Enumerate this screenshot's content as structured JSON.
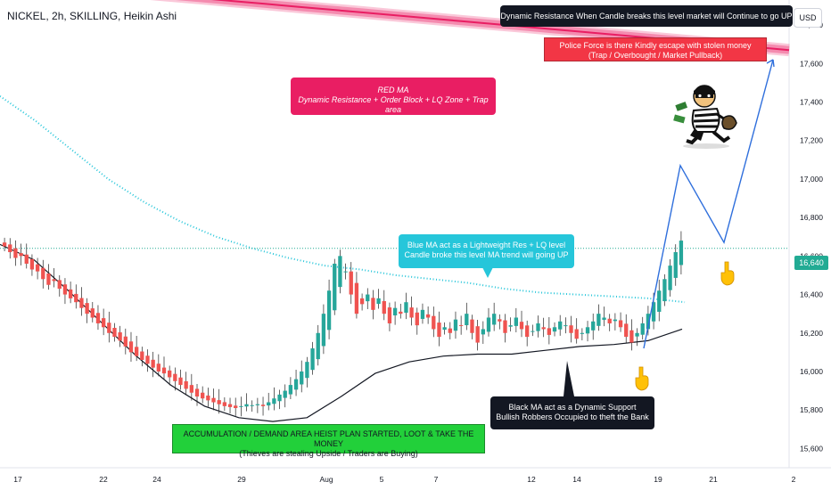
{
  "header": {
    "symbol_line": "NICKEL, 2h, SKILLING, Heikin Ashi",
    "currency": "USD"
  },
  "price_axis": {
    "ticks": [
      "17,800",
      "17,600",
      "17,400",
      "17,200",
      "17,000",
      "16,800",
      "16,600",
      "16,400",
      "16,200",
      "16,000",
      "15,800",
      "15,600"
    ],
    "current_price": "16,640"
  },
  "time_axis": {
    "ticks": [
      "17",
      "22",
      "24",
      "29",
      "Aug",
      "5",
      "7",
      "12",
      "14",
      "19",
      "21",
      "2"
    ]
  },
  "annotations": {
    "dynamic_resistance": "Dynamic Resistance When Candle breaks this level market will Continue to go UP",
    "police_line1": "Police Force is there Kindly escape with stolen money",
    "police_line2": "(Trap / Overbought / Market Pullback)",
    "red_ma_line1": "RED MA",
    "red_ma_line2": "Dynamic Resistance + Order Block + LQ Zone + Trap area",
    "blue_ma_line1": "Blue MA act as a Lightweight Res + LQ level",
    "blue_ma_line2": "Candle broke this level MA trend will going UP",
    "black_ma_line1": "Black MA act as a Dynamic Support",
    "black_ma_line2": "Bullish Robbers Occupied to theft the Bank",
    "accumulation_line1": "ACCUMULATION / DEMAND AREA HEIST PLAN STARTED, LOOT & TAKE THE MONEY",
    "accumulation_line2": "(Thieves are stealing Upside / Traders are Buying)"
  },
  "colors": {
    "bull": "#26a69a",
    "bear": "#ef5350",
    "red_ma": "#f06292",
    "blue_ma": "#26c6da",
    "black_ma": "#131722",
    "projection": "#2f6fdc",
    "price_line": "#22ab94"
  },
  "chart_data": {
    "type": "candlestick",
    "symbol": "NICKEL",
    "timeframe": "2h",
    "style": "Heikin Ashi",
    "ylim": [
      15500,
      17930
    ],
    "close_series": [
      16650,
      16620,
      16590,
      16600,
      16560,
      16530,
      16520,
      16480,
      16450,
      16470,
      16430,
      16400,
      16380,
      16360,
      16330,
      16300,
      16280,
      16250,
      16230,
      16200,
      16180,
      16160,
      16130,
      16100,
      16080,
      16060,
      16040,
      16020,
      16000,
      15990,
      15970,
      15950,
      15930,
      15910,
      15890,
      15870,
      15860,
      15850,
      15840,
      15830,
      15820,
      15815,
      15810,
      15820,
      15830,
      15825,
      15830,
      15820,
      15840,
      15860,
      15880,
      15900,
      15930,
      15960,
      16000,
      16050,
      16120,
      16200,
      16300,
      16420,
      16560,
      16600,
      16520,
      16400,
      16300,
      16350,
      16400,
      16320,
      16380,
      16300,
      16250,
      16330,
      16300,
      16360,
      16280,
      16240,
      16320,
      16280,
      16220,
      16180,
      16230,
      16200,
      16270,
      16240,
      16300,
      16200,
      16150,
      16220,
      16280,
      16300,
      16260,
      16200,
      16240,
      16280,
      16220,
      16180,
      16210,
      16250,
      16220,
      16190,
      16230,
      16260,
      16240,
      16200,
      16170,
      16200,
      16230,
      16260,
      16300,
      16280,
      16250,
      16270,
      16230,
      16180,
      16150,
      16200,
      16250,
      16300,
      16360,
      16420,
      16480,
      16550,
      16620,
      16680
    ],
    "ma_red": [
      17970,
      17955,
      17940,
      17925,
      17910,
      17895,
      17880,
      17865,
      17850,
      17835,
      17820,
      17805,
      17790,
      17775,
      17760,
      17745,
      17730,
      17715,
      17700,
      17685,
      17670
    ],
    "ma_blue": [
      17430,
      17300,
      17150,
      17000,
      16880,
      16780,
      16700,
      16640,
      16590,
      16550,
      16530,
      16500,
      16480,
      16460,
      16430,
      16410,
      16400,
      16390,
      16380,
      16360
    ],
    "ma_black": [
      16660,
      16580,
      16420,
      16250,
      16080,
      15930,
      15820,
      15760,
      15740,
      15760,
      15870,
      15990,
      16050,
      16080,
      16090,
      16090,
      16110,
      16130,
      16140,
      16160,
      16220
    ],
    "projection": [
      16120,
      17070,
      16670,
      17620
    ],
    "current_price": 16640
  }
}
